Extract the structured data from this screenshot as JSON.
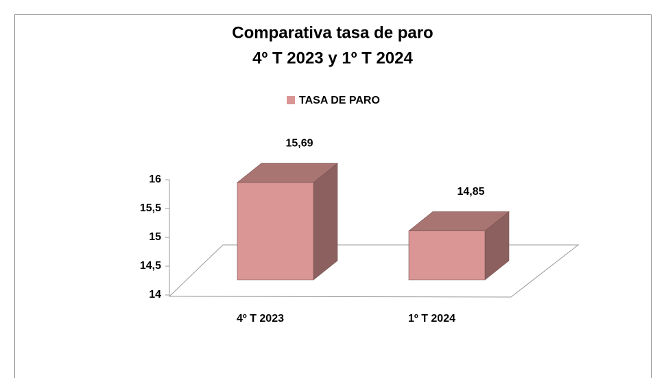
{
  "chart_data": {
    "type": "bar3d",
    "title": [
      "Comparativa tasa de paro",
      "4º T 2023 y 1º T 2024"
    ],
    "categories": [
      "4º T 2023",
      "1º T 2024"
    ],
    "series": [
      {
        "name": "TASA DE PARO",
        "color": "#d99694",
        "values": [
          15.69,
          14.85
        ],
        "value_labels": [
          "15,69",
          "14,85"
        ]
      }
    ],
    "ylim": [
      14,
      16
    ],
    "yticks": [
      14,
      {
        "value": 14.5,
        "label": "14,5"
      },
      15,
      {
        "value": 15.5,
        "label": "15,5"
      },
      16
    ],
    "legend": "top"
  }
}
